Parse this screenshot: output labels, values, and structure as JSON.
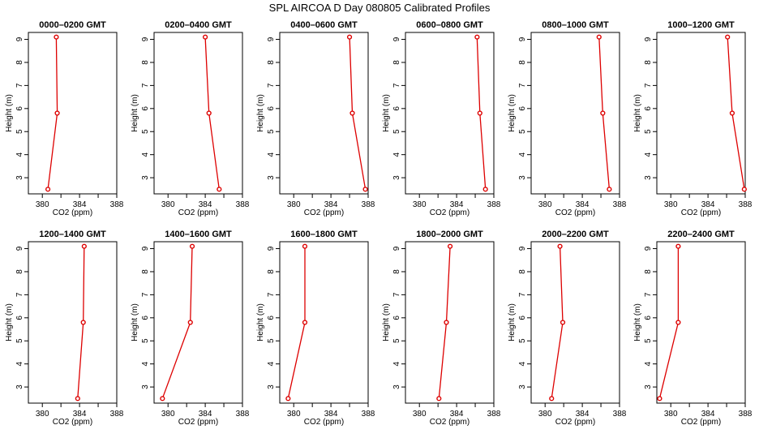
{
  "figure_title": "SPL AIRCOA D  Day 080805  Calibrated Profiles",
  "colors": {
    "series": "#dd0000",
    "frame": "#000000"
  },
  "chart_data": [
    {
      "type": "line",
      "title": "0000–0200 GMT",
      "xlabel": "CO2 (ppm)",
      "ylabel": "Height (m)",
      "xlim": [
        378.5,
        388
      ],
      "ylim": [
        2.3,
        9.3
      ],
      "xticks": [
        380,
        384,
        388
      ],
      "xticks_unlabeled": [
        382,
        386
      ],
      "yticks": [
        3,
        4,
        5,
        6,
        7,
        8,
        9
      ],
      "x": [
        380.6,
        381.6,
        381.5
      ],
      "y": [
        2.5,
        5.8,
        9.1
      ]
    },
    {
      "type": "line",
      "title": "0200–0400 GMT",
      "xlabel": "CO2 (ppm)",
      "ylabel": "Height (m)",
      "xlim": [
        378.5,
        388
      ],
      "ylim": [
        2.3,
        9.3
      ],
      "xticks": [
        380,
        384,
        388
      ],
      "xticks_unlabeled": [
        382,
        386
      ],
      "yticks": [
        3,
        4,
        5,
        6,
        7,
        8,
        9
      ],
      "x": [
        385.5,
        384.4,
        384.0
      ],
      "y": [
        2.5,
        5.8,
        9.1
      ]
    },
    {
      "type": "line",
      "title": "0400–0600 GMT",
      "xlabel": "CO2 (ppm)",
      "ylabel": "Height (m)",
      "xlim": [
        378.5,
        388
      ],
      "ylim": [
        2.3,
        9.3
      ],
      "xticks": [
        380,
        384,
        388
      ],
      "xticks_unlabeled": [
        382,
        386
      ],
      "yticks": [
        3,
        4,
        5,
        6,
        7,
        8,
        9
      ],
      "x": [
        387.7,
        386.3,
        386.0
      ],
      "y": [
        2.5,
        5.8,
        9.1
      ]
    },
    {
      "type": "line",
      "title": "0600–0800 GMT",
      "xlabel": "CO2 (ppm)",
      "ylabel": "Height (m)",
      "xlim": [
        378.5,
        388
      ],
      "ylim": [
        2.3,
        9.3
      ],
      "xticks": [
        380,
        384,
        388
      ],
      "xticks_unlabeled": [
        382,
        386
      ],
      "yticks": [
        3,
        4,
        5,
        6,
        7,
        8,
        9
      ],
      "x": [
        387.1,
        386.5,
        386.2
      ],
      "y": [
        2.5,
        5.8,
        9.1
      ]
    },
    {
      "type": "line",
      "title": "0800–1000 GMT",
      "xlabel": "CO2 (ppm)",
      "ylabel": "Height (m)",
      "xlim": [
        378.5,
        388
      ],
      "ylim": [
        2.3,
        9.3
      ],
      "xticks": [
        380,
        384,
        388
      ],
      "xticks_unlabeled": [
        382,
        386
      ],
      "yticks": [
        3,
        4,
        5,
        6,
        7,
        8,
        9
      ],
      "x": [
        386.9,
        386.2,
        385.8
      ],
      "y": [
        2.5,
        5.8,
        9.1
      ]
    },
    {
      "type": "line",
      "title": "1000–1200 GMT",
      "xlabel": "CO2 (ppm)",
      "ylabel": "Height (m)",
      "xlim": [
        378.5,
        388
      ],
      "ylim": [
        2.3,
        9.3
      ],
      "xticks": [
        380,
        384,
        388
      ],
      "xticks_unlabeled": [
        382,
        386
      ],
      "yticks": [
        3,
        4,
        5,
        6,
        7,
        8,
        9
      ],
      "x": [
        387.9,
        386.6,
        386.1
      ],
      "y": [
        2.5,
        5.8,
        9.1
      ]
    },
    {
      "type": "line",
      "title": "1200–1400 GMT",
      "xlabel": "CO2 (ppm)",
      "ylabel": "Height (m)",
      "xlim": [
        378.5,
        388
      ],
      "ylim": [
        2.3,
        9.3
      ],
      "xticks": [
        380,
        384,
        388
      ],
      "xticks_unlabeled": [
        382,
        386
      ],
      "yticks": [
        3,
        4,
        5,
        6,
        7,
        8,
        9
      ],
      "x": [
        383.8,
        384.4,
        384.5
      ],
      "y": [
        2.5,
        5.8,
        9.1
      ]
    },
    {
      "type": "line",
      "title": "1400–1600 GMT",
      "xlabel": "CO2 (ppm)",
      "ylabel": "Height (m)",
      "xlim": [
        378.5,
        388
      ],
      "ylim": [
        2.3,
        9.3
      ],
      "xticks": [
        380,
        384,
        388
      ],
      "xticks_unlabeled": [
        382,
        386
      ],
      "yticks": [
        3,
        4,
        5,
        6,
        7,
        8,
        9
      ],
      "x": [
        379.4,
        382.4,
        382.6
      ],
      "y": [
        2.5,
        5.8,
        9.1
      ]
    },
    {
      "type": "line",
      "title": "1600–1800 GMT",
      "xlabel": "CO2 (ppm)",
      "ylabel": "Height (m)",
      "xlim": [
        378.5,
        388
      ],
      "ylim": [
        2.3,
        9.3
      ],
      "xticks": [
        380,
        384,
        388
      ],
      "xticks_unlabeled": [
        382,
        386
      ],
      "yticks": [
        3,
        4,
        5,
        6,
        7,
        8,
        9
      ],
      "x": [
        379.4,
        381.2,
        381.2
      ],
      "y": [
        2.5,
        5.8,
        9.1
      ]
    },
    {
      "type": "line",
      "title": "1800–2000 GMT",
      "xlabel": "CO2 (ppm)",
      "ylabel": "Height (m)",
      "xlim": [
        378.5,
        388
      ],
      "ylim": [
        2.3,
        9.3
      ],
      "xticks": [
        380,
        384,
        388
      ],
      "xticks_unlabeled": [
        382,
        386
      ],
      "yticks": [
        3,
        4,
        5,
        6,
        7,
        8,
        9
      ],
      "x": [
        382.1,
        382.9,
        383.3
      ],
      "y": [
        2.5,
        5.8,
        9.1
      ]
    },
    {
      "type": "line",
      "title": "2000–2200 GMT",
      "xlabel": "CO2 (ppm)",
      "ylabel": "Height (m)",
      "xlim": [
        378.5,
        388
      ],
      "ylim": [
        2.3,
        9.3
      ],
      "xticks": [
        380,
        384,
        388
      ],
      "xticks_unlabeled": [
        382,
        386
      ],
      "yticks": [
        3,
        4,
        5,
        6,
        7,
        8,
        9
      ],
      "x": [
        380.7,
        381.9,
        381.6
      ],
      "y": [
        2.5,
        5.8,
        9.1
      ]
    },
    {
      "type": "line",
      "title": "2200–2400 GMT",
      "xlabel": "CO2 (ppm)",
      "ylabel": "Height (m)",
      "xlim": [
        378.5,
        388
      ],
      "ylim": [
        2.3,
        9.3
      ],
      "xticks": [
        380,
        384,
        388
      ],
      "xticks_unlabeled": [
        382,
        386
      ],
      "yticks": [
        3,
        4,
        5,
        6,
        7,
        8,
        9
      ],
      "x": [
        378.8,
        380.8,
        380.8
      ],
      "y": [
        2.5,
        5.8,
        9.1
      ]
    }
  ]
}
